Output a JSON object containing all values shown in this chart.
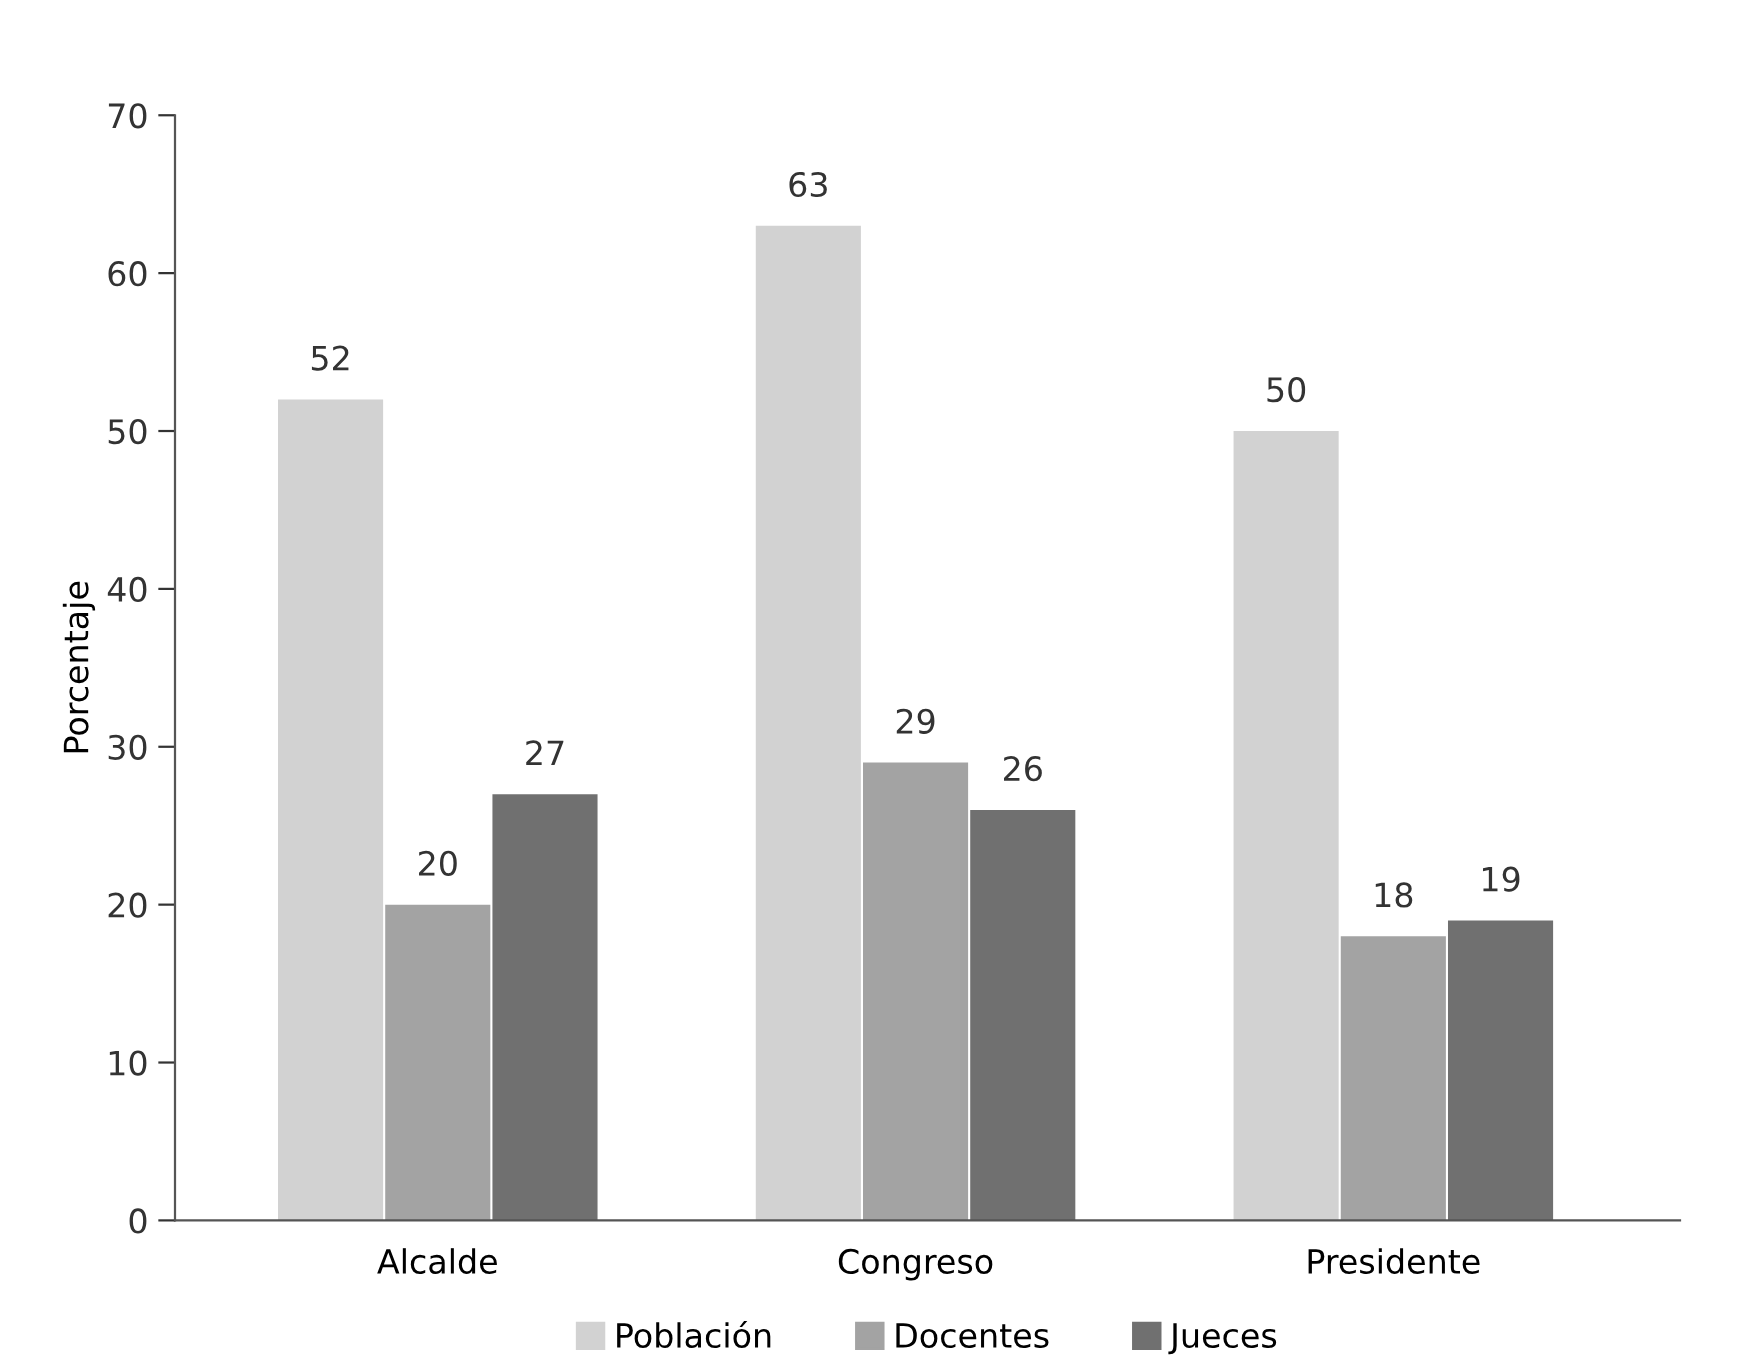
{
  "chart_data": {
    "type": "bar",
    "ylabel": "Porcentaje",
    "categories": [
      "Alcalde",
      "Congreso",
      "Presidente"
    ],
    "series": [
      {
        "name": "Población",
        "color": "#d2d2d2",
        "values": [
          52,
          63,
          50
        ]
      },
      {
        "name": "Docentes",
        "color": "#a3a3a3",
        "values": [
          20,
          29,
          18
        ]
      },
      {
        "name": "Jueces",
        "color": "#707070",
        "values": [
          27,
          26,
          19
        ]
      }
    ],
    "ylim": [
      0,
      70
    ],
    "yticks": [
      0,
      10,
      20,
      30,
      40,
      50,
      60,
      70
    ],
    "data_labels": true,
    "legend": "bottom",
    "grid": false
  }
}
